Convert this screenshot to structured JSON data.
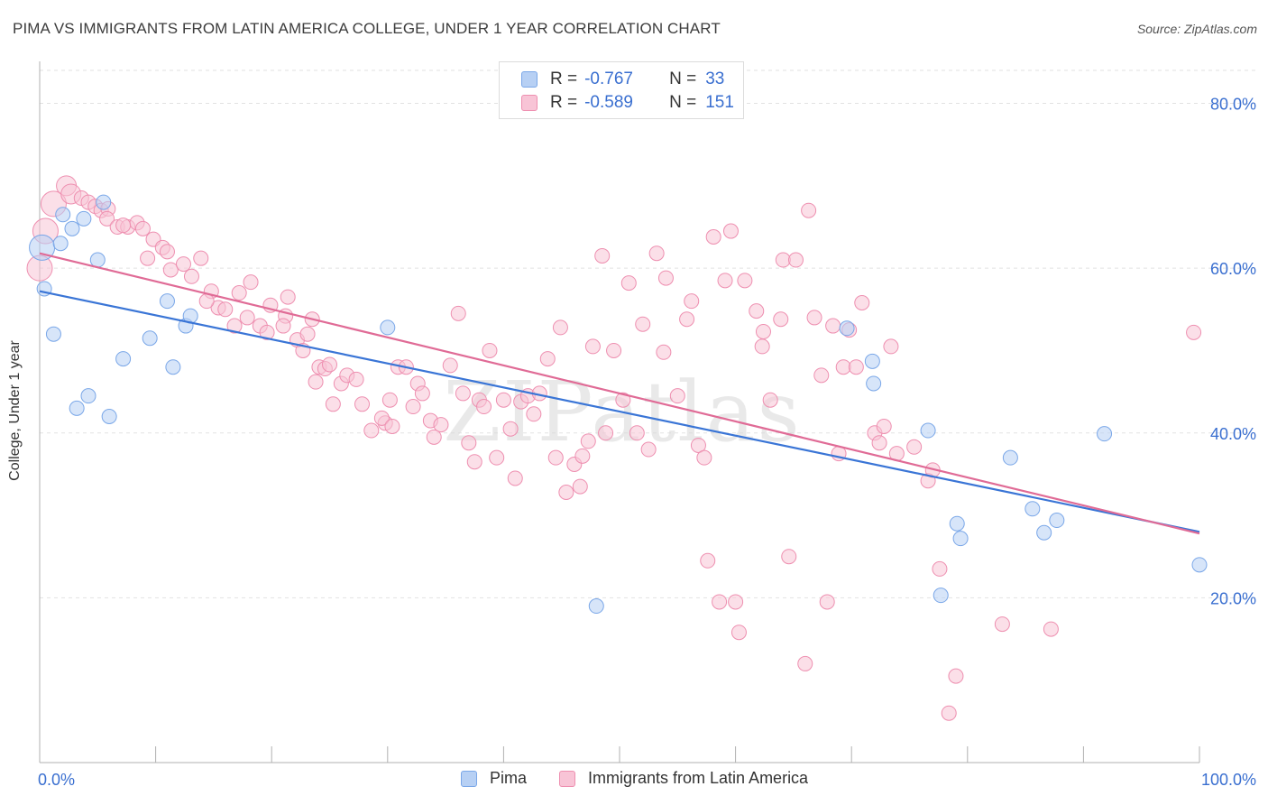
{
  "title": "PIMA VS IMMIGRANTS FROM LATIN AMERICA COLLEGE, UNDER 1 YEAR CORRELATION CHART",
  "source": "Source: ZipAtlas.com",
  "watermark": "ZIPatlas",
  "colors": {
    "pima_fill": "#b7d0f4",
    "pima_stroke": "#7aa7e8",
    "pima_line": "#3a75d6",
    "latin_fill": "#f8c4d6",
    "latin_stroke": "#ee8fb0",
    "latin_line": "#e06b96",
    "value_text": "#3a6fd0",
    "grid": "#e2e2e2"
  },
  "stats": {
    "pima": {
      "r_label": "R =",
      "r_value": "-0.767",
      "n_label": "N =",
      "n_value": "33"
    },
    "latin": {
      "r_label": "R =",
      "r_value": "-0.589",
      "n_label": "N =",
      "n_value": "151"
    }
  },
  "legend": {
    "pima": "Pima",
    "latin": "Immigrants from Latin America"
  },
  "chart_data": {
    "type": "scatter",
    "title": "PIMA VS IMMIGRANTS FROM LATIN AMERICA COLLEGE, UNDER 1 YEAR CORRELATION CHART",
    "xlabel": "",
    "ylabel": "College, Under 1 year",
    "xlim": [
      0,
      100
    ],
    "ylim": [
      0,
      84
    ],
    "x_tick_labels": [
      "0.0%",
      "100.0%"
    ],
    "y_ticks": [
      20,
      40,
      60,
      80
    ],
    "y_tick_labels": [
      "20.0%",
      "40.0%",
      "60.0%",
      "80.0%"
    ],
    "grid": true,
    "legend_position": "bottom-center",
    "series": [
      {
        "name": "Pima",
        "trend": {
          "x": [
            0,
            100
          ],
          "y": [
            57.2,
            28.0
          ]
        },
        "points": [
          [
            0.2,
            62.5,
            3
          ],
          [
            0.4,
            57.5,
            1
          ],
          [
            1.2,
            52.0,
            1
          ],
          [
            2.0,
            66.5,
            1
          ],
          [
            1.8,
            63.0,
            1
          ],
          [
            2.8,
            64.8,
            1
          ],
          [
            3.8,
            66.0,
            1
          ],
          [
            5.5,
            68.0,
            1
          ],
          [
            5.0,
            61.0,
            1
          ],
          [
            3.2,
            43.0,
            1
          ],
          [
            4.2,
            44.5,
            1
          ],
          [
            6.0,
            42.0,
            1
          ],
          [
            7.2,
            49.0,
            1
          ],
          [
            9.5,
            51.5,
            1
          ],
          [
            11.0,
            56.0,
            1
          ],
          [
            11.5,
            48.0,
            1
          ],
          [
            12.6,
            53.0,
            1
          ],
          [
            13.0,
            54.2,
            1
          ],
          [
            30.0,
            52.8,
            1
          ],
          [
            48.0,
            19.0,
            1
          ],
          [
            69.6,
            52.7,
            1
          ],
          [
            71.8,
            48.7,
            1
          ],
          [
            71.9,
            46.0,
            1
          ],
          [
            76.6,
            40.3,
            1
          ],
          [
            77.7,
            20.3,
            1
          ],
          [
            79.1,
            29.0,
            1
          ],
          [
            79.4,
            27.2,
            1
          ],
          [
            83.7,
            37.0,
            1
          ],
          [
            85.6,
            30.8,
            1
          ],
          [
            86.6,
            27.9,
            1
          ],
          [
            87.7,
            29.4,
            1
          ],
          [
            91.8,
            39.9,
            1
          ],
          [
            100.0,
            24.0,
            1
          ]
        ]
      },
      {
        "name": "Immigrants from Latin America",
        "trend": {
          "x": [
            0,
            100
          ],
          "y": [
            61.8,
            27.8
          ]
        },
        "points": [
          [
            0.0,
            60.0,
            3
          ],
          [
            0.5,
            64.5,
            3
          ],
          [
            1.2,
            67.8,
            3
          ],
          [
            2.3,
            70.0,
            2
          ],
          [
            2.7,
            69.0,
            2
          ],
          [
            3.6,
            68.5,
            1
          ],
          [
            4.2,
            68.0,
            1
          ],
          [
            4.8,
            67.5,
            1
          ],
          [
            5.3,
            67.0,
            1
          ],
          [
            5.9,
            67.2,
            1
          ],
          [
            5.8,
            66.0,
            1
          ],
          [
            6.7,
            65.0,
            1
          ],
          [
            7.6,
            65.0,
            1
          ],
          [
            8.4,
            65.5,
            1
          ],
          [
            8.9,
            64.8,
            1
          ],
          [
            7.2,
            65.2,
            1
          ],
          [
            9.8,
            63.5,
            1
          ],
          [
            10.6,
            62.5,
            1
          ],
          [
            11.0,
            62.0,
            1
          ],
          [
            9.3,
            61.2,
            1
          ],
          [
            11.3,
            59.8,
            1
          ],
          [
            12.4,
            60.5,
            1
          ],
          [
            13.1,
            59.0,
            1
          ],
          [
            13.9,
            61.2,
            1
          ],
          [
            14.8,
            57.2,
            1
          ],
          [
            15.4,
            55.2,
            1
          ],
          [
            14.4,
            56.0,
            1
          ],
          [
            16.0,
            55.0,
            1
          ],
          [
            17.2,
            57.0,
            1
          ],
          [
            18.2,
            58.3,
            1
          ],
          [
            17.9,
            54.0,
            1
          ],
          [
            16.8,
            53.0,
            1
          ],
          [
            19.0,
            53.0,
            1
          ],
          [
            19.6,
            52.2,
            1
          ],
          [
            19.9,
            55.5,
            1
          ],
          [
            21.2,
            54.2,
            1
          ],
          [
            21.0,
            53.0,
            1
          ],
          [
            21.4,
            56.5,
            1
          ],
          [
            22.2,
            51.3,
            1
          ],
          [
            22.7,
            50.0,
            1
          ],
          [
            23.1,
            52.0,
            1
          ],
          [
            23.5,
            53.8,
            1
          ],
          [
            24.1,
            48.0,
            1
          ],
          [
            23.8,
            46.2,
            1
          ],
          [
            24.6,
            47.8,
            1
          ],
          [
            25.0,
            48.3,
            1
          ],
          [
            25.3,
            43.5,
            1
          ],
          [
            26.0,
            46.0,
            1
          ],
          [
            26.5,
            47.0,
            1
          ],
          [
            27.3,
            46.5,
            1
          ],
          [
            27.8,
            43.5,
            1
          ],
          [
            28.6,
            40.3,
            1
          ],
          [
            29.8,
            41.2,
            1
          ],
          [
            29.5,
            41.8,
            1
          ],
          [
            30.4,
            40.8,
            1
          ],
          [
            30.2,
            44.0,
            1
          ],
          [
            30.9,
            48.0,
            1
          ],
          [
            31.6,
            48.0,
            1
          ],
          [
            32.2,
            43.2,
            1
          ],
          [
            32.6,
            46.0,
            1
          ],
          [
            33.0,
            44.8,
            1
          ],
          [
            33.7,
            41.5,
            1
          ],
          [
            34.0,
            39.5,
            1
          ],
          [
            34.6,
            41.0,
            1
          ],
          [
            35.4,
            48.2,
            1
          ],
          [
            36.1,
            54.5,
            1
          ],
          [
            36.5,
            44.8,
            1
          ],
          [
            37.0,
            38.8,
            1
          ],
          [
            37.5,
            36.5,
            1
          ],
          [
            37.9,
            44.0,
            1
          ],
          [
            38.3,
            43.2,
            1
          ],
          [
            38.8,
            50.0,
            1
          ],
          [
            39.4,
            37.0,
            1
          ],
          [
            40.0,
            44.0,
            1
          ],
          [
            40.6,
            40.5,
            1
          ],
          [
            41.0,
            34.5,
            1
          ],
          [
            41.5,
            43.8,
            1
          ],
          [
            42.1,
            44.5,
            1
          ],
          [
            42.6,
            42.3,
            1
          ],
          [
            43.1,
            44.8,
            1
          ],
          [
            43.8,
            49.0,
            1
          ],
          [
            44.5,
            37.0,
            1
          ],
          [
            44.9,
            52.8,
            1
          ],
          [
            45.4,
            32.8,
            1
          ],
          [
            46.1,
            36.2,
            1
          ],
          [
            46.6,
            33.5,
            1
          ],
          [
            46.8,
            37.2,
            1
          ],
          [
            47.3,
            39.0,
            1
          ],
          [
            47.7,
            50.5,
            1
          ],
          [
            48.5,
            61.5,
            1
          ],
          [
            48.8,
            40.0,
            1
          ],
          [
            49.5,
            50.0,
            1
          ],
          [
            50.3,
            44.0,
            1
          ],
          [
            50.8,
            58.2,
            1
          ],
          [
            51.5,
            40.0,
            1
          ],
          [
            52.0,
            53.2,
            1
          ],
          [
            52.5,
            38.0,
            1
          ],
          [
            53.2,
            61.8,
            1
          ],
          [
            53.8,
            49.8,
            1
          ],
          [
            54.0,
            58.8,
            1
          ],
          [
            55.0,
            44.5,
            1
          ],
          [
            55.8,
            53.8,
            1
          ],
          [
            56.2,
            56.0,
            1
          ],
          [
            56.8,
            38.5,
            1
          ],
          [
            57.3,
            37.0,
            1
          ],
          [
            57.6,
            24.5,
            1
          ],
          [
            58.1,
            63.8,
            1
          ],
          [
            58.6,
            19.5,
            1
          ],
          [
            59.1,
            58.5,
            1
          ],
          [
            59.6,
            64.5,
            1
          ],
          [
            60.0,
            19.5,
            1
          ],
          [
            60.3,
            15.8,
            1
          ],
          [
            60.8,
            58.5,
            1
          ],
          [
            61.8,
            54.8,
            1
          ],
          [
            62.3,
            50.5,
            1
          ],
          [
            62.4,
            52.3,
            1
          ],
          [
            63.0,
            44.0,
            1
          ],
          [
            63.9,
            53.8,
            1
          ],
          [
            64.1,
            61.0,
            1
          ],
          [
            64.6,
            25.0,
            1
          ],
          [
            65.2,
            61.0,
            1
          ],
          [
            66.0,
            12.0,
            1
          ],
          [
            66.3,
            67.0,
            1
          ],
          [
            66.8,
            54.0,
            1
          ],
          [
            67.4,
            47.0,
            1
          ],
          [
            67.9,
            19.5,
            1
          ],
          [
            68.4,
            53.0,
            1
          ],
          [
            68.9,
            37.5,
            1
          ],
          [
            69.3,
            48.0,
            1
          ],
          [
            69.8,
            52.5,
            1
          ],
          [
            70.4,
            48.0,
            1
          ],
          [
            70.9,
            55.8,
            1
          ],
          [
            72.0,
            40.0,
            1
          ],
          [
            72.4,
            38.8,
            1
          ],
          [
            72.8,
            40.8,
            1
          ],
          [
            73.4,
            50.5,
            1
          ],
          [
            73.9,
            37.5,
            1
          ],
          [
            75.4,
            38.3,
            1
          ],
          [
            76.6,
            34.2,
            1
          ],
          [
            77.0,
            35.5,
            1
          ],
          [
            77.6,
            23.5,
            1
          ],
          [
            78.4,
            6.0,
            1
          ],
          [
            79.0,
            10.5,
            1
          ],
          [
            83.0,
            16.8,
            1
          ],
          [
            87.2,
            16.2,
            1
          ],
          [
            99.5,
            52.2,
            1
          ]
        ]
      }
    ]
  }
}
